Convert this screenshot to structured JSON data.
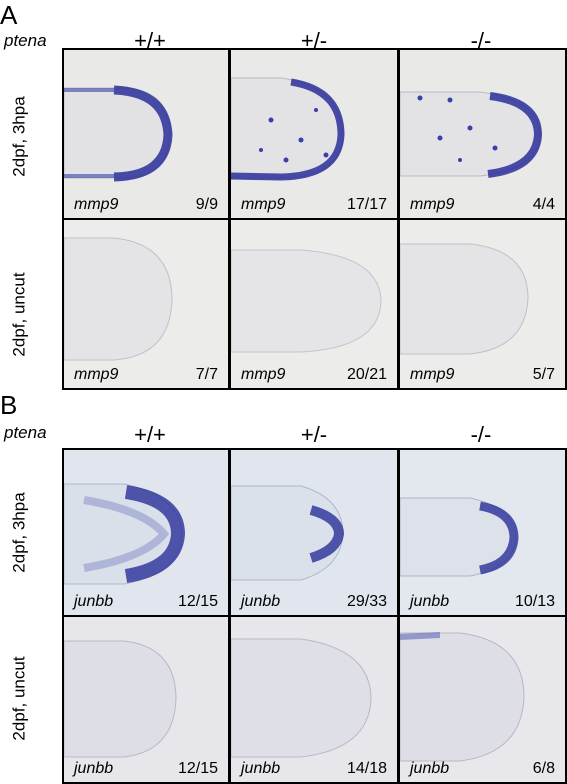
{
  "panels": [
    {
      "letter": "A",
      "gene": "ptena",
      "genotypes": [
        "+/+",
        "+/-",
        "-/-"
      ],
      "rows": [
        {
          "label": "2dpf, 3hpa",
          "tiles": [
            {
              "probe": "mmp9",
              "count": "9/9"
            },
            {
              "probe": "mmp9",
              "count": "17/17"
            },
            {
              "probe": "mmp9",
              "count": "4/4"
            }
          ]
        },
        {
          "label": "2dpf, uncut",
          "tiles": [
            {
              "probe": "mmp9",
              "count": "7/7"
            },
            {
              "probe": "mmp9",
              "count": "20/21"
            },
            {
              "probe": "mmp9",
              "count": "5/7"
            }
          ]
        }
      ]
    },
    {
      "letter": "B",
      "gene": "ptena",
      "genotypes": [
        "+/+",
        "+/-",
        "-/-"
      ],
      "rows": [
        {
          "label": "2dpf, 3hpa",
          "tiles": [
            {
              "probe": "junbb",
              "count": "12/15"
            },
            {
              "probe": "junbb",
              "count": "29/33"
            },
            {
              "probe": "junbb",
              "count": "10/13"
            }
          ]
        },
        {
          "label": "2dpf, uncut",
          "tiles": [
            {
              "probe": "junbb",
              "count": "12/15"
            },
            {
              "probe": "junbb",
              "count": "14/18"
            },
            {
              "probe": "junbb",
              "count": "6/8"
            }
          ]
        }
      ]
    }
  ],
  "colors": {
    "stain": "#2a2f9a",
    "background_A": "#e8e8e6",
    "background_B_top": "#dfe5ee",
    "background_B_bottom": "#e6e6ea",
    "tissue_outline": "#b8b8c0"
  }
}
